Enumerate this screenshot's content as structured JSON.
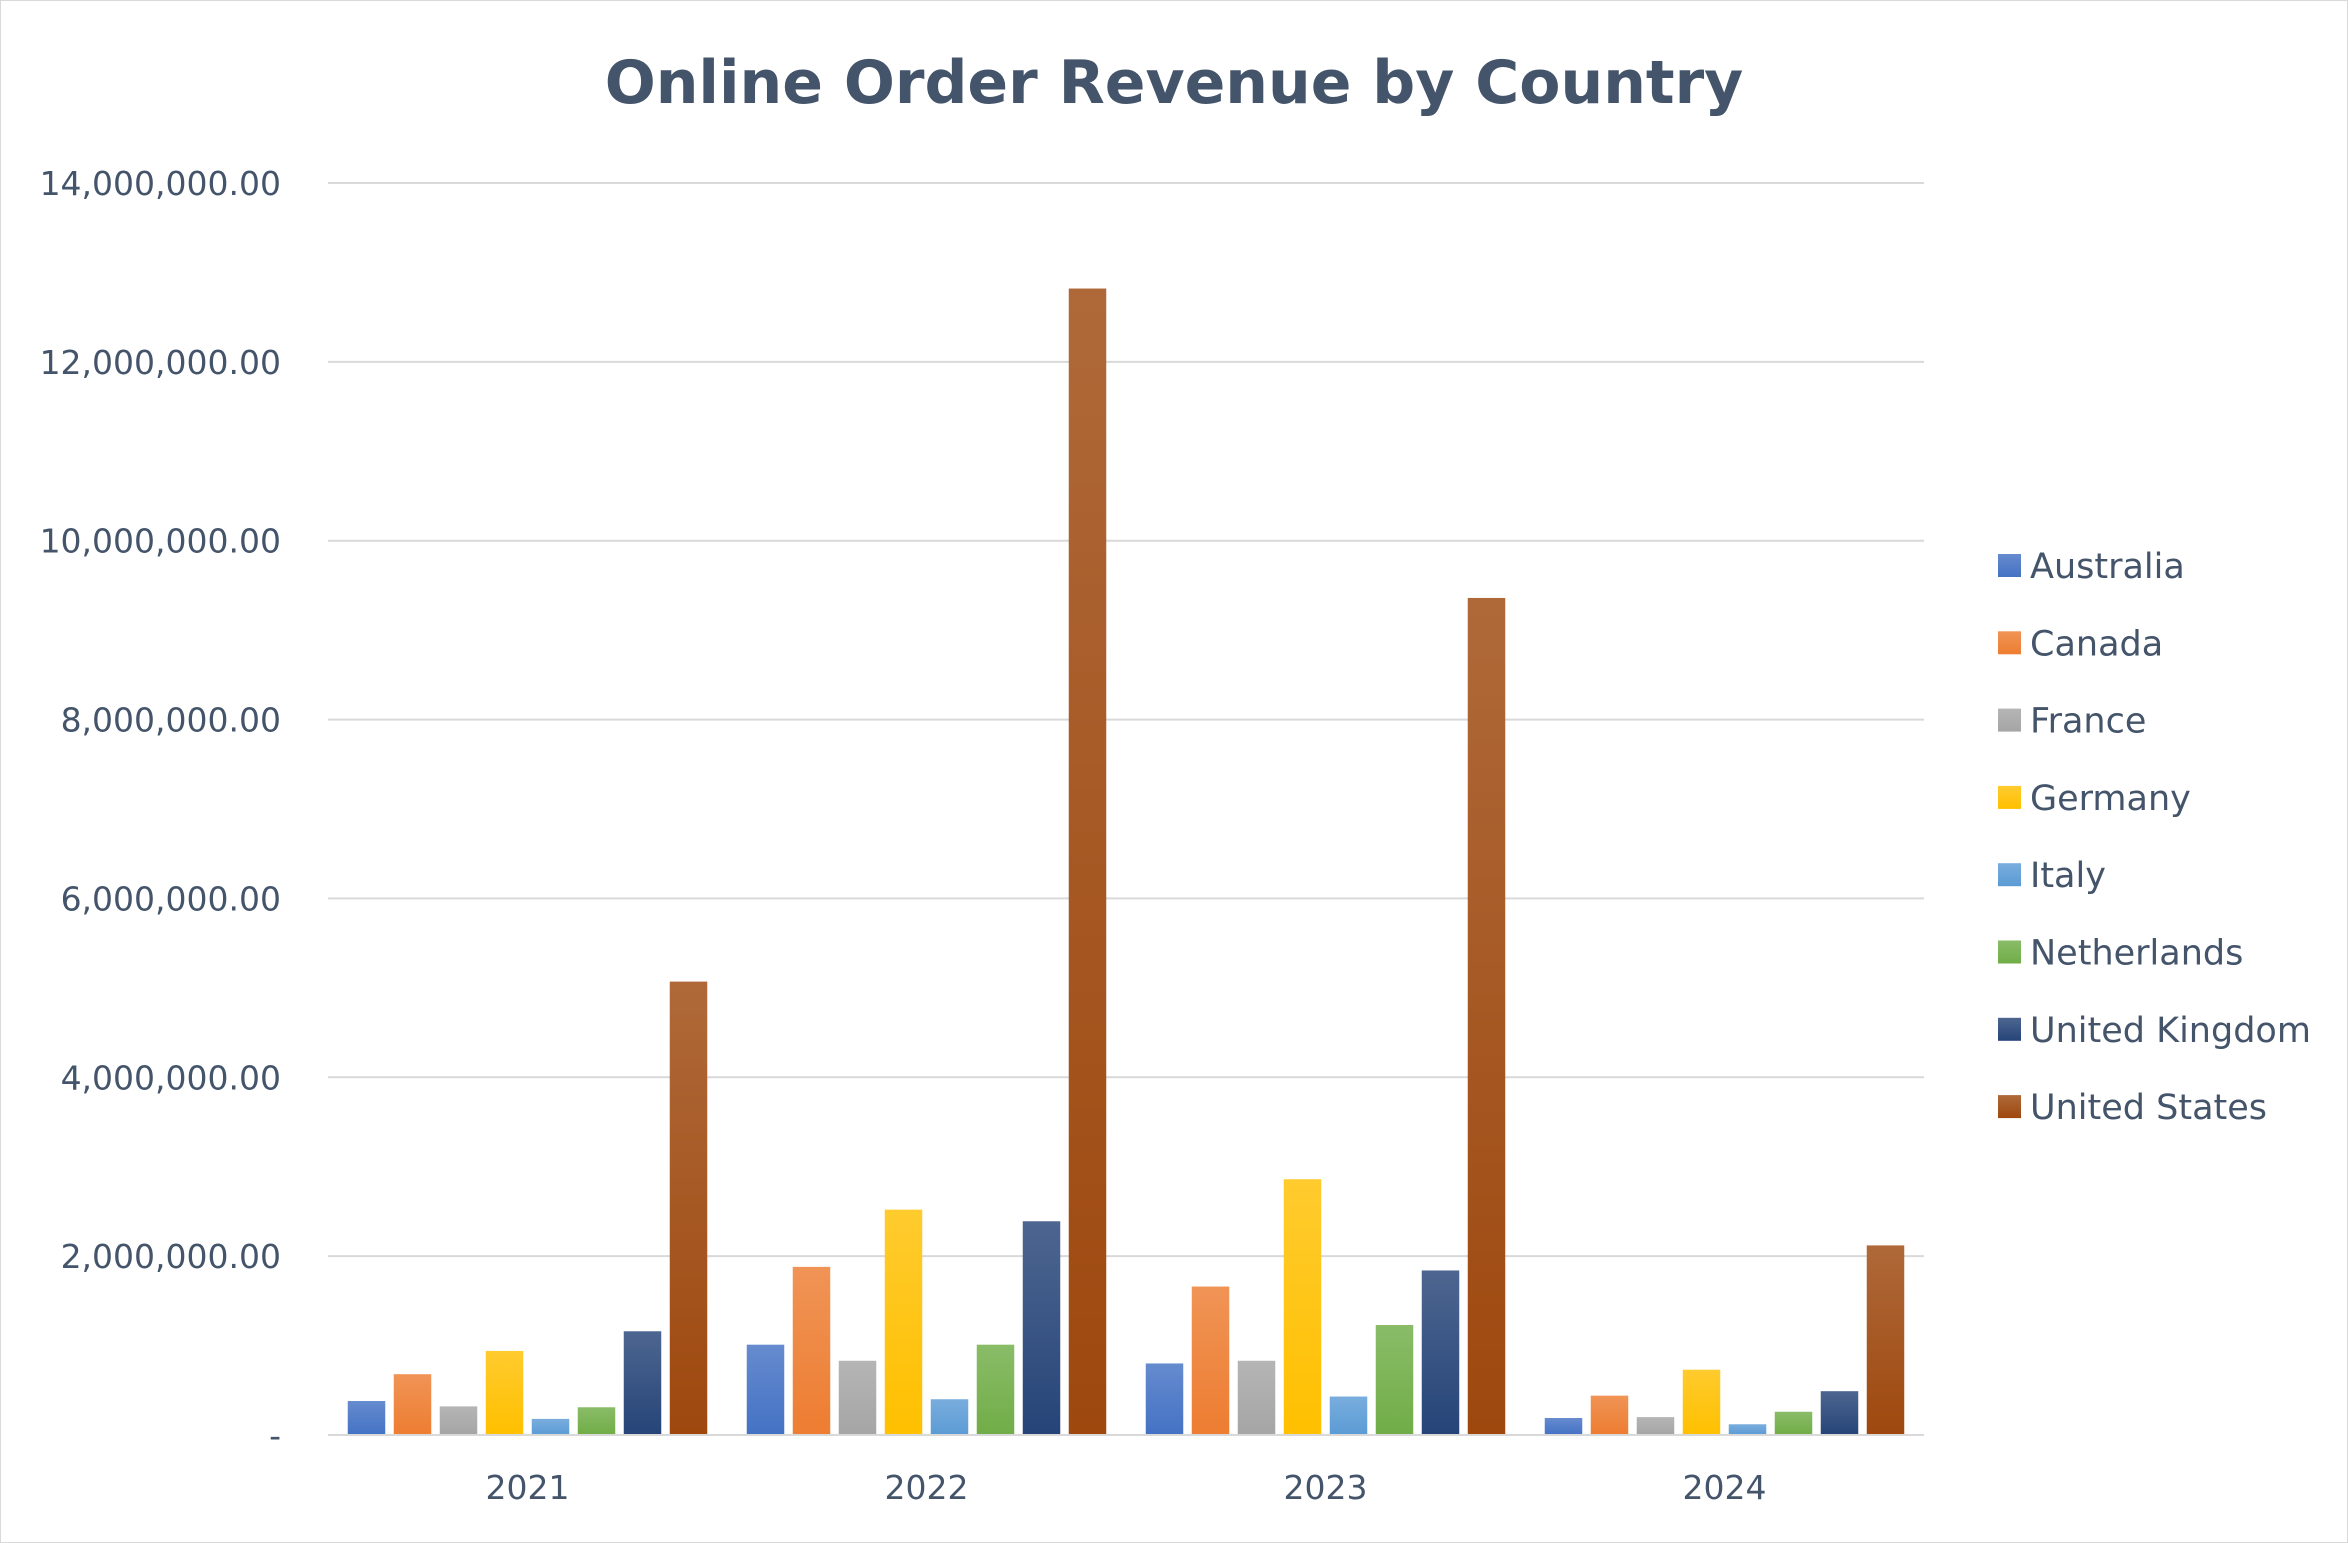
{
  "chart_data": {
    "type": "bar",
    "title": "Online Order Revenue by Country",
    "xlabel": "",
    "ylabel": "",
    "categories": [
      "2021",
      "2022",
      "2023",
      "2024"
    ],
    "ylim": [
      0,
      14000000
    ],
    "yticks": [
      0,
      2000000,
      4000000,
      6000000,
      8000000,
      10000000,
      12000000,
      14000000
    ],
    "ytick_labels": [
      "-",
      "2,000,000.00",
      "4,000,000.00",
      "6,000,000.00",
      "8,000,000.00",
      "10,000,000.00",
      "12,000,000.00",
      "14,000,000.00"
    ],
    "grid": true,
    "legend_position": "right",
    "series": [
      {
        "name": "Australia",
        "color": "#4472c4",
        "values": [
          380000,
          1010000,
          800000,
          190000
        ]
      },
      {
        "name": "Canada",
        "color": "#ed7d31",
        "values": [
          680000,
          1880000,
          1660000,
          440000
        ]
      },
      {
        "name": "France",
        "color": "#a5a5a5",
        "values": [
          320000,
          830000,
          830000,
          200000
        ]
      },
      {
        "name": "Germany",
        "color": "#ffc000",
        "values": [
          940000,
          2520000,
          2860000,
          730000
        ]
      },
      {
        "name": "Italy",
        "color": "#5b9bd5",
        "values": [
          180000,
          400000,
          430000,
          120000
        ]
      },
      {
        "name": "Netherlands",
        "color": "#70ad47",
        "values": [
          310000,
          1010000,
          1230000,
          260000
        ]
      },
      {
        "name": "United Kingdom",
        "color": "#264478",
        "values": [
          1160000,
          2390000,
          1840000,
          490000
        ]
      },
      {
        "name": "United States",
        "color": "#9e480e",
        "values": [
          5070000,
          12820000,
          9360000,
          2120000
        ]
      }
    ]
  }
}
